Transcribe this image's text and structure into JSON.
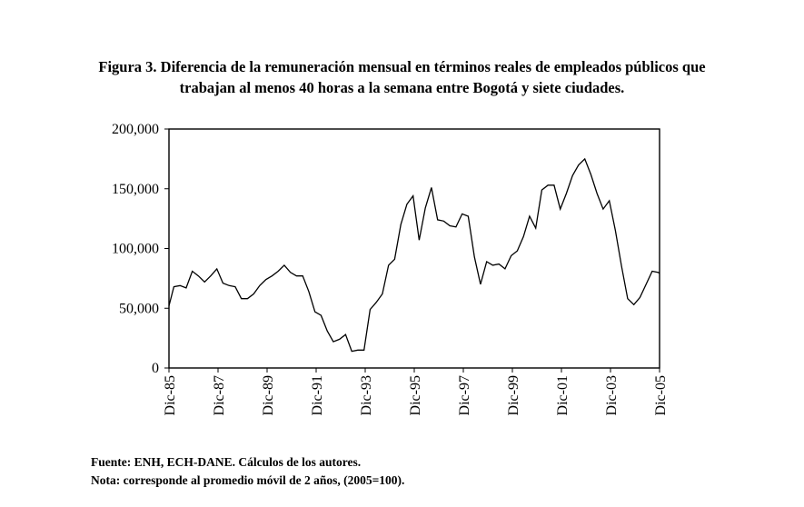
{
  "figure": {
    "title_line1": "Figura 3. Diferencia de la remuneración mensual en términos reales de empleados públicos que",
    "title_line2": "trabajan al menos 40 horas a la semana entre Bogotá y siete ciudades.",
    "source": "Fuente: ENH, ECH-DANE. Cálculos de los autores.",
    "note": "Nota: corresponde al promedio móvil de 2 años, (2005=100)."
  },
  "chart_data": {
    "type": "line",
    "title": "Figura 3. Diferencia de la remuneración mensual en términos reales de empleados públicos que trabajan al menos 40 horas a la semana entre Bogotá y siete ciudades.",
    "xlabel": "",
    "ylabel": "",
    "ylim": [
      0,
      200000
    ],
    "y_ticks": [
      0,
      50000,
      100000,
      150000,
      200000
    ],
    "y_tick_labels": [
      "0",
      "50,000",
      "100,000",
      "150,000",
      "200,000"
    ],
    "x_tick_labels": [
      "Dic-85",
      "Dic-87",
      "Dic-89",
      "Dic-91",
      "Dic-93",
      "Dic-95",
      "Dic-97",
      "Dic-99",
      "Dic-01",
      "Dic-03",
      "Dic-05"
    ],
    "x_tick_years": [
      1985,
      1987,
      1989,
      1991,
      1993,
      1995,
      1997,
      1999,
      2001,
      2003,
      2005
    ],
    "x_range": [
      1985.0,
      2005.0
    ],
    "grid": false,
    "series": [
      {
        "x": [
          1985.0,
          1985.2,
          1985.45,
          1985.7,
          1985.95,
          1986.2,
          1986.45,
          1986.7,
          1986.95,
          1987.2,
          1987.45,
          1987.7,
          1987.95,
          1988.2,
          1988.45,
          1988.7,
          1988.95,
          1989.2,
          1989.45,
          1989.7,
          1989.95,
          1990.2,
          1990.45,
          1990.7,
          1990.95,
          1991.2,
          1991.45,
          1991.7,
          1991.95,
          1992.2,
          1992.45,
          1992.7,
          1992.95,
          1993.2,
          1993.45,
          1993.7,
          1993.95,
          1994.2,
          1994.45,
          1994.7,
          1994.95,
          1995.2,
          1995.45,
          1995.7,
          1995.95,
          1996.2,
          1996.45,
          1996.7,
          1996.95,
          1997.2,
          1997.45,
          1997.7,
          1997.95,
          1998.2,
          1998.45,
          1998.7,
          1998.95,
          1999.2,
          1999.45,
          1999.7,
          1999.95,
          2000.2,
          2000.45,
          2000.7,
          2000.95,
          2001.2,
          2001.45,
          2001.7,
          2001.95,
          2002.2,
          2002.45,
          2002.7,
          2002.95,
          2003.2,
          2003.45,
          2003.7,
          2003.95,
          2004.2,
          2004.45,
          2004.7,
          2004.95,
          2005.0
        ],
        "values": [
          52000,
          68000,
          69000,
          67000,
          81000,
          77000,
          72000,
          77000,
          83000,
          71000,
          69000,
          68000,
          58000,
          58000,
          62000,
          69000,
          74000,
          77000,
          81000,
          86000,
          80000,
          77000,
          77000,
          64000,
          47000,
          44000,
          31000,
          22000,
          24000,
          28000,
          14000,
          15000,
          15000,
          49000,
          55000,
          62000,
          86000,
          91000,
          120000,
          137000,
          144000,
          107000,
          134000,
          151000,
          124000,
          123000,
          119000,
          118000,
          129000,
          127000,
          93000,
          70000,
          89000,
          86000,
          87000,
          83000,
          94000,
          98000,
          110000,
          127000,
          117000,
          149000,
          153000,
          153000,
          133000,
          146000,
          161000,
          170000,
          175000,
          162000,
          146000,
          133000,
          140000,
          115000,
          85000,
          58000,
          53000,
          59000,
          70000,
          81000,
          80000,
          79000
        ]
      }
    ]
  }
}
